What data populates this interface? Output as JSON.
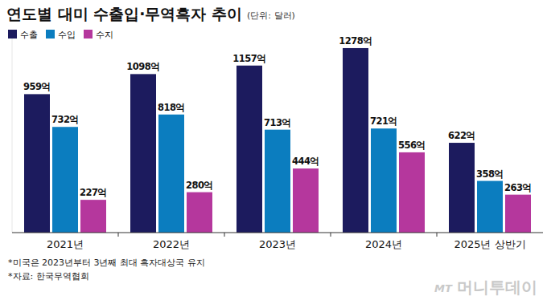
{
  "chart_data": {
    "type": "bar",
    "title": "연도별 대미 수출입·무역흑자 추이",
    "subtitle": "(단위: 달러)",
    "categories": [
      "2021년",
      "2022년",
      "2023년",
      "2024년",
      "2025년 상반기"
    ],
    "series": [
      {
        "name": "수출",
        "color": "#1c1b5e",
        "values": [
          959,
          1098,
          1157,
          1278,
          622
        ],
        "value_labels": [
          "959억",
          "1098억",
          "1157억",
          "1278억",
          "622억"
        ]
      },
      {
        "name": "수입",
        "color": "#0b7dbf",
        "values": [
          732,
          818,
          713,
          721,
          358
        ],
        "value_labels": [
          "732억",
          "818억",
          "713억",
          "721억",
          "358억"
        ]
      },
      {
        "name": "수지",
        "color": "#b5379d",
        "values": [
          227,
          280,
          444,
          556,
          263
        ],
        "value_labels": [
          "227억",
          "280억",
          "444억",
          "556억",
          "263억"
        ]
      }
    ],
    "ylim": [
      0,
      1400
    ],
    "tick_labels": "x",
    "data_labels": true,
    "legend": "top-left",
    "annotations": [
      "*미국은 2023년부터 3년째 최대 흑자대상국 유지",
      "*자료: 한국무역협회",
      "MT",
      "머니투데이"
    ]
  }
}
